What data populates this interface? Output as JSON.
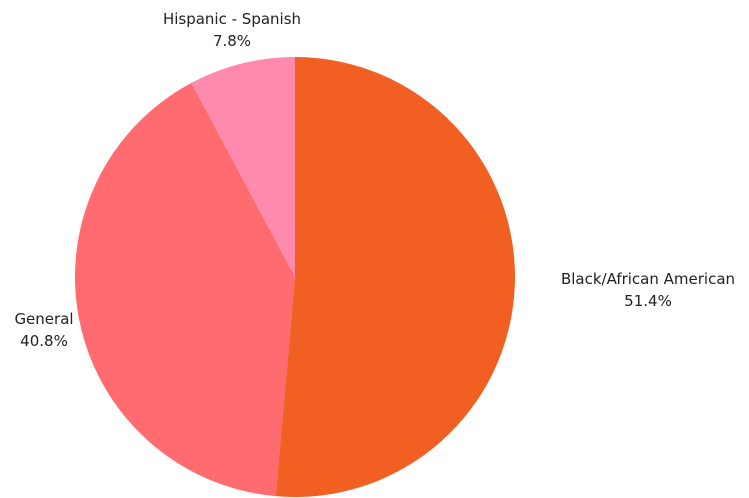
{
  "chart_data": {
    "type": "pie",
    "title": "",
    "slices": [
      {
        "label": "Black/African American",
        "value": 51.4,
        "percent_label": "51.4%",
        "color": "#F15F22"
      },
      {
        "label": "General",
        "value": 40.8,
        "percent_label": "40.8%",
        "color": "#FF6B6F"
      },
      {
        "label": "Hispanic - Spanish",
        "value": 7.8,
        "percent_label": "7.8%",
        "color": "#FF8AAE"
      }
    ],
    "start": "top",
    "direction": "clockwise",
    "labels": "outside"
  }
}
